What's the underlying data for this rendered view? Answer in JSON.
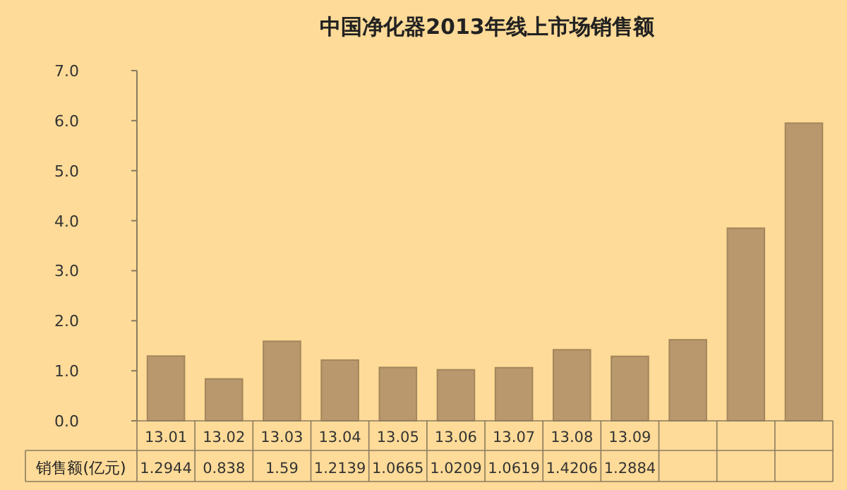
{
  "chart_data": {
    "type": "bar",
    "title": "中国净化器2013年线上市场销售额",
    "categories": [
      "13.01",
      "13.02",
      "13.03",
      "13.04",
      "13.05",
      "13.06",
      "13.07",
      "13.08",
      "13.09",
      null,
      null,
      null
    ],
    "series": [
      {
        "name": "销售额(亿元)",
        "color": "#b8986c",
        "values": [
          1.2944,
          0.838,
          1.59,
          1.2139,
          1.0665,
          1.0209,
          1.0619,
          1.4206,
          1.2884,
          1.62,
          3.85,
          5.95
        ],
        "value_labels": [
          "1.2944",
          "0.838",
          "1.59",
          "1.2139",
          "1.0665",
          "1.0209",
          "1.0619",
          "1.4206",
          "1.2884",
          null,
          null,
          null
        ]
      }
    ],
    "ylim": [
      0,
      7
    ],
    "yticks": [
      {
        "value": 0,
        "label": "0.0"
      },
      {
        "value": 1,
        "label": "1.0"
      },
      {
        "value": 2,
        "label": "2.0"
      },
      {
        "value": 3,
        "label": "3.0"
      },
      {
        "value": 4,
        "label": "4.0"
      },
      {
        "value": 5,
        "label": "5.0"
      },
      {
        "value": 6,
        "label": "6.0"
      },
      {
        "value": 7,
        "label": "7.0"
      }
    ],
    "grid": false,
    "legend": false
  }
}
